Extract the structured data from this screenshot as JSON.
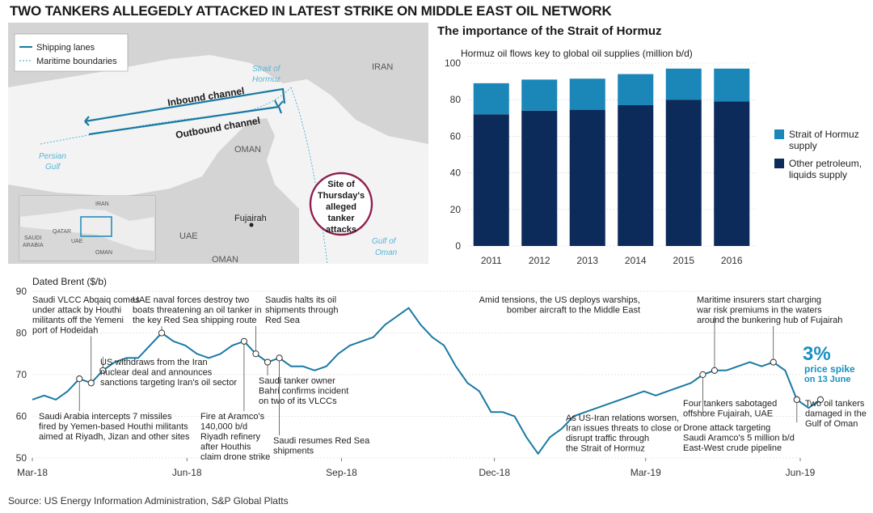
{
  "title": "TWO TANKERS ALLEGEDLY ATTACKED IN LATEST STRIKE ON MIDDLE EAST OIL NETWORK",
  "map": {
    "legend": {
      "shipping": "Shipping lanes",
      "maritime": "Maritime boundaries"
    },
    "labels": {
      "strait": [
        "Strait of",
        "Hormuz"
      ],
      "iran": "IRAN",
      "oman_top": "OMAN",
      "oman_bottom": "OMAN",
      "uae": "UAE",
      "persian": [
        "Persian",
        "Gulf"
      ],
      "gulf_oman": [
        "Gulf of",
        "Oman"
      ],
      "fujairah": "Fujairah",
      "inbound": "Inbound channel",
      "outbound": "Outbound channel",
      "site": [
        "Site of",
        "Thursday's",
        "alleged",
        "tanker",
        "attacks"
      ]
    },
    "inset": {
      "iran": "IRAN",
      "qatar": "QATAR",
      "saudi": [
        "SAUDI",
        "ARABIA"
      ],
      "uae": "UAE",
      "oman": "OMAN"
    }
  },
  "section_title": "The importance of the Strait of Hormuz",
  "colors": {
    "hormuz": "#1a87b8",
    "other": "#0c2a5a",
    "line": "#1a7aa3",
    "accent": "#1a8fc2",
    "site": "#8e1e4e"
  },
  "chart_data": [
    {
      "type": "bar",
      "stacked": true,
      "title": "Hormuz oil flows key to global oil supplies (million b/d)",
      "categories": [
        "2011",
        "2012",
        "2013",
        "2014",
        "2015",
        "2016"
      ],
      "series": [
        {
          "name": "Other petroleum, liquids supply",
          "values": [
            72,
            74,
            74.5,
            77,
            80,
            79
          ]
        },
        {
          "name": "Strait of Hormuz supply",
          "values": [
            17,
            17,
            17,
            17,
            17,
            18
          ]
        }
      ],
      "legend": [
        "Strait of Hormuz supply",
        "Other petroleum, liquids supply"
      ],
      "legend_display": [
        [
          "Strait of Hormuz",
          "supply"
        ],
        [
          "Other petroleum,",
          "liquids supply"
        ]
      ],
      "ylim": [
        0,
        100
      ],
      "yticks": [
        0,
        20,
        40,
        60,
        80,
        100
      ],
      "legend_position": "right"
    },
    {
      "type": "line",
      "title": "Dated Brent ($/b)",
      "ylim": [
        50,
        90
      ],
      "yticks": [
        50,
        60,
        70,
        80,
        90
      ],
      "xticks": [
        "Mar-18",
        "Jun-18",
        "Sep-18",
        "Dec-18",
        "Mar-19",
        "Jun-19"
      ],
      "xtick_dates": [
        "2018-03-01",
        "2018-06-01",
        "2018-09-01",
        "2018-12-01",
        "2019-03-01",
        "2019-06-01"
      ],
      "series": [
        {
          "dates": [
            "2018-03-01",
            "2018-03-08",
            "2018-03-15",
            "2018-03-22",
            "2018-03-29",
            "2018-04-05",
            "2018-04-12",
            "2018-04-19",
            "2018-04-26",
            "2018-05-03",
            "2018-05-10",
            "2018-05-17",
            "2018-05-24",
            "2018-05-31",
            "2018-06-07",
            "2018-06-14",
            "2018-06-21",
            "2018-06-28",
            "2018-07-05",
            "2018-07-12",
            "2018-07-19",
            "2018-07-26",
            "2018-08-02",
            "2018-08-09",
            "2018-08-16",
            "2018-08-23",
            "2018-08-30",
            "2018-09-06",
            "2018-09-13",
            "2018-09-20",
            "2018-09-27",
            "2018-10-04",
            "2018-10-11",
            "2018-10-18",
            "2018-10-25",
            "2018-11-01",
            "2018-11-08",
            "2018-11-15",
            "2018-11-22",
            "2018-11-29",
            "2018-12-06",
            "2018-12-13",
            "2018-12-20",
            "2018-12-27",
            "2019-01-03",
            "2019-01-10",
            "2019-01-17",
            "2019-01-24",
            "2019-01-31",
            "2019-02-07",
            "2019-02-14",
            "2019-02-21",
            "2019-02-28",
            "2019-03-07",
            "2019-03-14",
            "2019-03-21",
            "2019-03-28",
            "2019-04-04",
            "2019-04-11",
            "2019-04-18",
            "2019-04-25",
            "2019-05-02",
            "2019-05-09",
            "2019-05-16",
            "2019-05-23",
            "2019-05-30",
            "2019-06-06",
            "2019-06-13"
          ],
          "values": [
            64,
            65,
            64,
            66,
            69,
            68,
            71,
            73,
            74,
            74,
            77,
            80,
            78,
            77,
            75,
            74,
            75,
            77,
            78,
            75,
            73,
            74,
            72,
            72,
            71,
            72,
            75,
            77,
            78,
            79,
            82,
            84,
            86,
            82,
            79,
            77,
            72,
            68,
            66,
            61,
            61,
            60,
            55,
            51,
            55,
            57,
            60,
            61,
            62,
            63,
            64,
            65,
            66,
            65,
            66,
            67,
            68,
            70,
            71,
            71,
            72,
            73,
            72,
            73,
            71,
            64,
            62,
            64
          ]
        }
      ]
    }
  ],
  "annotations": {
    "a1": [
      "Saudi VLCC Abqaiq comes",
      "under attack by Houthi",
      "militants off the Yemeni",
      "port of Hodeidah"
    ],
    "a2": [
      "UAE naval forces destroy two",
      "boats threatening an oil tanker in",
      "the key Red Sea shipping route"
    ],
    "a3": [
      "Saudis halts its oil",
      "shipments through",
      "Red Sea"
    ],
    "a4": [
      "Amid tensions, the US deploys warships,",
      "bomber aircraft to the Middle East"
    ],
    "a5": [
      "Maritime insurers start charging",
      "war risk premiums in the waters",
      "around the bunkering hub of Fujairah"
    ],
    "a6": [
      "US withdraws from the Iran",
      "nuclear deal and announces",
      "sanctions targeting Iran's oil sector"
    ],
    "a7": [
      "Saudi tanker owner",
      "Bahri confirms incident",
      "on two of its VLCCs"
    ],
    "a8": [
      "Saudi Arabia intercepts 7 missiles",
      "fired by Yemen-based Houthi militants",
      "aimed at Riyadh, Jizan and other sites"
    ],
    "a9": [
      "Fire at Aramco's",
      "140,000 b/d",
      "Riyadh refinery",
      "after Houthis",
      "claim drone strike"
    ],
    "a10": [
      "Saudi resumes Red Sea",
      "shipments"
    ],
    "a11": [
      "As US-Iran relations worsen,",
      "Iran issues threats to close or",
      "disrupt traffic through",
      "the Strait of Hormuz"
    ],
    "a12": [
      "Four tankers sabotaged",
      "offshore Fujairah, UAE"
    ],
    "a13": [
      "Drone attack targeting",
      "Saudi Aramco's 5 million b/d",
      "East-West crude pipeline"
    ],
    "a14": [
      "Two oil tankers",
      "damaged in the",
      "Gulf of Oman"
    ]
  },
  "spike": {
    "value": "3%",
    "line1": "price spike",
    "line2": "on 13 June"
  },
  "source": "Source: US Energy Information Administration, S&P Global Platts"
}
